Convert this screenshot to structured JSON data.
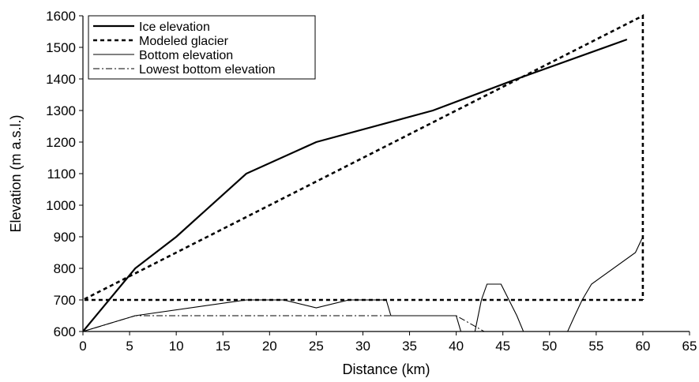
{
  "chart_data": {
    "type": "line",
    "title": "",
    "xlabel": "Distance (km)",
    "ylabel": "Elevation (m a.s.l.)",
    "xlim": [
      0,
      65
    ],
    "ylim": [
      600,
      1600
    ],
    "xticks": [
      0,
      5,
      10,
      15,
      20,
      25,
      30,
      35,
      40,
      45,
      50,
      55,
      60,
      65
    ],
    "yticks": [
      600,
      700,
      800,
      900,
      1000,
      1100,
      1200,
      1300,
      1400,
      1500,
      1600
    ],
    "grid": false,
    "legend_position": "top-left",
    "series": [
      {
        "name": "Ice elevation",
        "style": "solid-thick",
        "x": [
          0,
          5.6,
          10,
          17.5,
          25,
          37.5,
          46.5,
          58.3
        ],
        "y": [
          600,
          800,
          900,
          1100,
          1200,
          1300,
          1400,
          1525
        ]
      },
      {
        "name": "Modeled glacier",
        "style": "dashed-thick",
        "x": [
          60,
          0,
          60,
          60
        ],
        "y": [
          700,
          700,
          1600,
          700
        ]
      },
      {
        "name": "Bottom elevation",
        "style": "solid-thin",
        "x": [
          0,
          5.6,
          17.5,
          21.5,
          25,
          28.5,
          32.5,
          33,
          37.5,
          40,
          40.5,
          40.5,
          41.9,
          42.7,
          43.3,
          44.8,
          46.5,
          47.2,
          47.2,
          51.7,
          52.7,
          53.5,
          54.5,
          59.2,
          60
        ],
        "y": [
          600,
          650,
          700,
          700,
          675,
          700,
          700,
          650,
          650,
          650,
          600,
          585,
          585,
          700,
          750,
          750,
          650,
          600,
          585,
          585,
          650,
          700,
          750,
          850,
          900
        ]
      },
      {
        "name": "Lowest bottom elevation",
        "style": "dashdot-thin",
        "x": [
          0,
          5.6,
          40,
          43
        ],
        "y": [
          600,
          650,
          650,
          600
        ]
      }
    ]
  }
}
